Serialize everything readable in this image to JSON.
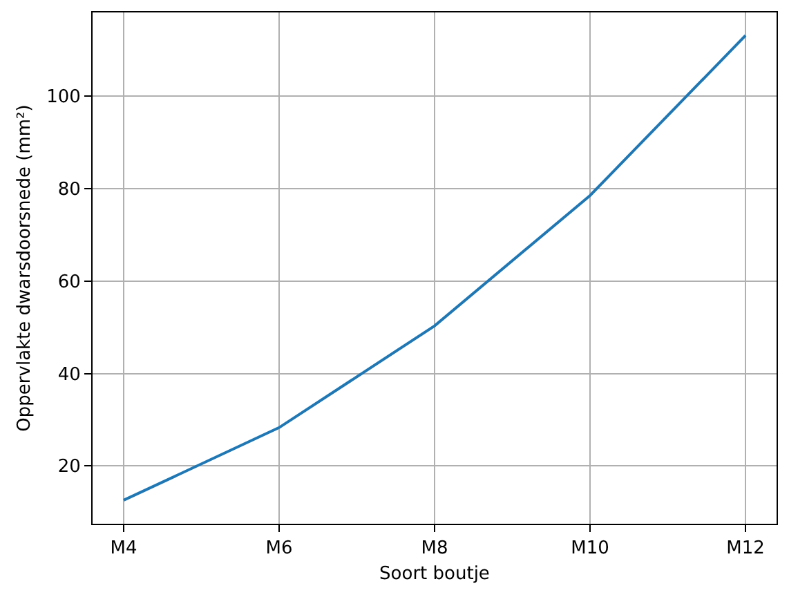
{
  "chart_data": {
    "type": "line",
    "xlabel": "Soort boutje",
    "ylabel": "Oppervlakte dwarsdoorsnede (mm²)",
    "categories": [
      "M4",
      "M6",
      "M8",
      "M10",
      "M12"
    ],
    "values": [
      12.6,
      28.3,
      50.3,
      78.5,
      113.1
    ],
    "color": "#1f77b4",
    "ylim": [
      7.5,
      118.1
    ],
    "yticks": [
      20,
      40,
      60,
      80,
      100
    ],
    "grid": true
  }
}
